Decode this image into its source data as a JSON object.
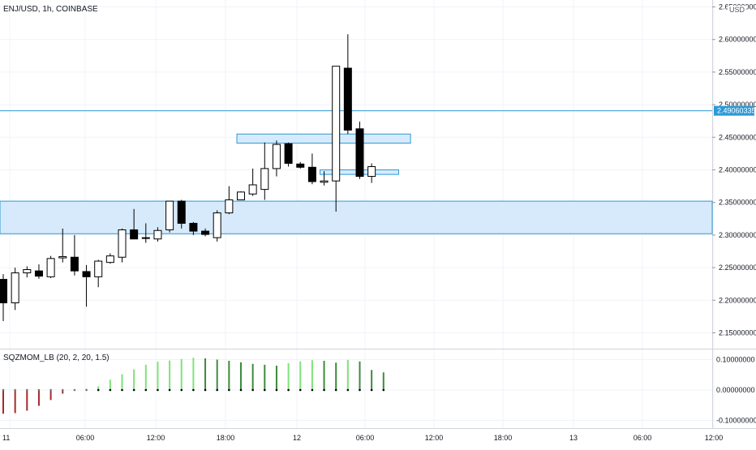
{
  "header": {
    "symbol_title": "ENJ/USD, 1h, COINBASE",
    "currency": "USD"
  },
  "oscillator": {
    "title": "SQZMOM_LB (20, 2, 20, 1.5)"
  },
  "colors": {
    "background": "#ffffff",
    "grid": "#f0f3fa",
    "candle_up_fill": "#ffffff",
    "candle_down_fill": "#000000",
    "candle_border": "#000000",
    "zone_fill": "#d6eafc",
    "zone_border": "#2d9ad6",
    "line": "#2d9ad6",
    "price_label_bg": "#2d9ad6",
    "price_label_text": "#ffffff",
    "axis_text": "#131722",
    "osc_red": "#a52a2a",
    "osc_bright_green": "#7ee27a",
    "osc_dark_green": "#3d8b3d",
    "osc_dot_gray": "#777777",
    "osc_dot_black": "#000000"
  },
  "chart_data": [
    {
      "type": "candlestick",
      "title": "ENJ/USD, 1h, COINBASE",
      "x_ticks": [
        "11",
        "06:00",
        "12:00",
        "18:00",
        "12",
        "06:00",
        "12:00",
        "18:00",
        "13",
        "06:00",
        "12:00"
      ],
      "y_ticks": [
        "2.15000000",
        "2.20000000",
        "2.25000000",
        "2.30000000",
        "2.35000000",
        "2.40000000",
        "2.45000000",
        "2.50000000",
        "2.55000000",
        "2.60000000",
        "2.65000000"
      ],
      "ylim": [
        2.13,
        2.65
      ],
      "grid": true,
      "candles": [
        {
          "o": 2.232,
          "h": 2.24,
          "l": 2.168,
          "c": 2.196
        },
        {
          "o": 2.196,
          "h": 2.25,
          "l": 2.185,
          "c": 2.242
        },
        {
          "o": 2.242,
          "h": 2.252,
          "l": 2.235,
          "c": 2.247
        },
        {
          "o": 2.245,
          "h": 2.255,
          "l": 2.233,
          "c": 2.237
        },
        {
          "o": 2.236,
          "h": 2.268,
          "l": 2.234,
          "c": 2.264
        },
        {
          "o": 2.265,
          "h": 2.31,
          "l": 2.258,
          "c": 2.267
        },
        {
          "o": 2.266,
          "h": 2.3,
          "l": 2.238,
          "c": 2.245
        },
        {
          "o": 2.244,
          "h": 2.254,
          "l": 2.19,
          "c": 2.236
        },
        {
          "o": 2.236,
          "h": 2.262,
          "l": 2.22,
          "c": 2.26
        },
        {
          "o": 2.258,
          "h": 2.272,
          "l": 2.256,
          "c": 2.268
        },
        {
          "o": 2.266,
          "h": 2.31,
          "l": 2.258,
          "c": 2.308
        },
        {
          "o": 2.308,
          "h": 2.34,
          "l": 2.298,
          "c": 2.294
        },
        {
          "o": 2.295,
          "h": 2.318,
          "l": 2.288,
          "c": 2.296
        },
        {
          "o": 2.294,
          "h": 2.312,
          "l": 2.29,
          "c": 2.307
        },
        {
          "o": 2.308,
          "h": 2.352,
          "l": 2.304,
          "c": 2.352
        },
        {
          "o": 2.352,
          "h": 2.354,
          "l": 2.31,
          "c": 2.318
        },
        {
          "o": 2.318,
          "h": 2.32,
          "l": 2.3,
          "c": 2.306
        },
        {
          "o": 2.306,
          "h": 2.31,
          "l": 2.298,
          "c": 2.301
        },
        {
          "o": 2.296,
          "h": 2.338,
          "l": 2.29,
          "c": 2.334
        },
        {
          "o": 2.334,
          "h": 2.375,
          "l": 2.332,
          "c": 2.354
        },
        {
          "o": 2.354,
          "h": 2.367,
          "l": 2.354,
          "c": 2.366
        },
        {
          "o": 2.363,
          "h": 2.402,
          "l": 2.36,
          "c": 2.377
        },
        {
          "o": 2.37,
          "h": 2.442,
          "l": 2.354,
          "c": 2.402
        },
        {
          "o": 2.402,
          "h": 2.445,
          "l": 2.39,
          "c": 2.439
        },
        {
          "o": 2.44,
          "h": 2.442,
          "l": 2.405,
          "c": 2.41
        },
        {
          "o": 2.409,
          "h": 2.412,
          "l": 2.402,
          "c": 2.404
        },
        {
          "o": 2.404,
          "h": 2.425,
          "l": 2.378,
          "c": 2.382
        },
        {
          "o": 2.381,
          "h": 2.398,
          "l": 2.376,
          "c": 2.383
        },
        {
          "o": 2.383,
          "h": 2.559,
          "l": 2.336,
          "c": 2.559
        },
        {
          "o": 2.556,
          "h": 2.608,
          "l": 2.455,
          "c": 2.461
        },
        {
          "o": 2.463,
          "h": 2.474,
          "l": 2.386,
          "c": 2.39
        },
        {
          "o": 2.39,
          "h": 2.41,
          "l": 2.38,
          "c": 2.405
        }
      ],
      "levels": [
        {
          "type": "line",
          "price": 2.49060335,
          "label": "2.49060335"
        },
        {
          "type": "zone",
          "low": 2.302,
          "high": 2.352
        },
        {
          "type": "zone",
          "low": 2.441,
          "high": 2.455,
          "from_index": 20,
          "to_index": 34
        },
        {
          "type": "zone",
          "low": 2.393,
          "high": 2.4,
          "from_index": 27,
          "to_index": 33
        }
      ]
    },
    {
      "type": "bar",
      "title": "SQZMOM_LB (20, 2, 20, 1.5)",
      "y_ticks": [
        "0.10000000",
        "0.00000000",
        "-0.10000000"
      ],
      "ylim": [
        -0.13,
        0.125
      ],
      "values": [
        -0.078,
        -0.076,
        -0.068,
        -0.052,
        -0.033,
        -0.012,
        0.001,
        0.004,
        0.012,
        0.034,
        0.052,
        0.068,
        0.083,
        0.093,
        0.097,
        0.102,
        0.106,
        0.104,
        0.1,
        0.096,
        0.091,
        0.086,
        0.083,
        0.08,
        0.088,
        0.094,
        0.098,
        0.096,
        0.09,
        0.099,
        0.094,
        0.066,
        0.058
      ],
      "bar_color_keys": [
        "osc_red",
        "osc_red",
        "osc_red",
        "osc_red",
        "osc_red",
        "osc_red",
        "osc_bright_green",
        "osc_bright_green",
        "osc_bright_green",
        "osc_bright_green",
        "osc_bright_green",
        "osc_bright_green",
        "osc_bright_green",
        "osc_bright_green",
        "osc_bright_green",
        "osc_bright_green",
        "osc_bright_green",
        "osc_dark_green",
        "osc_dark_green",
        "osc_dark_green",
        "osc_dark_green",
        "osc_dark_green",
        "osc_dark_green",
        "osc_dark_green",
        "osc_bright_green",
        "osc_bright_green",
        "osc_bright_green",
        "osc_dark_green",
        "osc_dark_green",
        "osc_bright_green",
        "osc_dark_green",
        "osc_dark_green",
        "osc_dark_green"
      ],
      "dot_color_keys": [
        "osc_dot_gray",
        "osc_dot_gray",
        "osc_dot_gray",
        "osc_dot_gray",
        "osc_dot_gray",
        "osc_dot_gray",
        "osc_dot_gray",
        "osc_dot_gray",
        "osc_dot_black",
        "osc_dot_black",
        "osc_dot_black",
        "osc_dot_black",
        "osc_dot_black",
        "osc_dot_black",
        "osc_dot_black",
        "osc_dot_black",
        "osc_dot_black",
        "osc_dot_black",
        "osc_dot_black",
        "osc_dot_black",
        "osc_dot_black",
        "osc_dot_black",
        "osc_dot_black",
        "osc_dot_black",
        "osc_dot_black",
        "osc_dot_black",
        "osc_dot_black",
        "osc_dot_black",
        "osc_dot_black",
        "osc_dot_black",
        "osc_dot_black",
        "osc_dot_black",
        "osc_dot_black"
      ]
    }
  ]
}
